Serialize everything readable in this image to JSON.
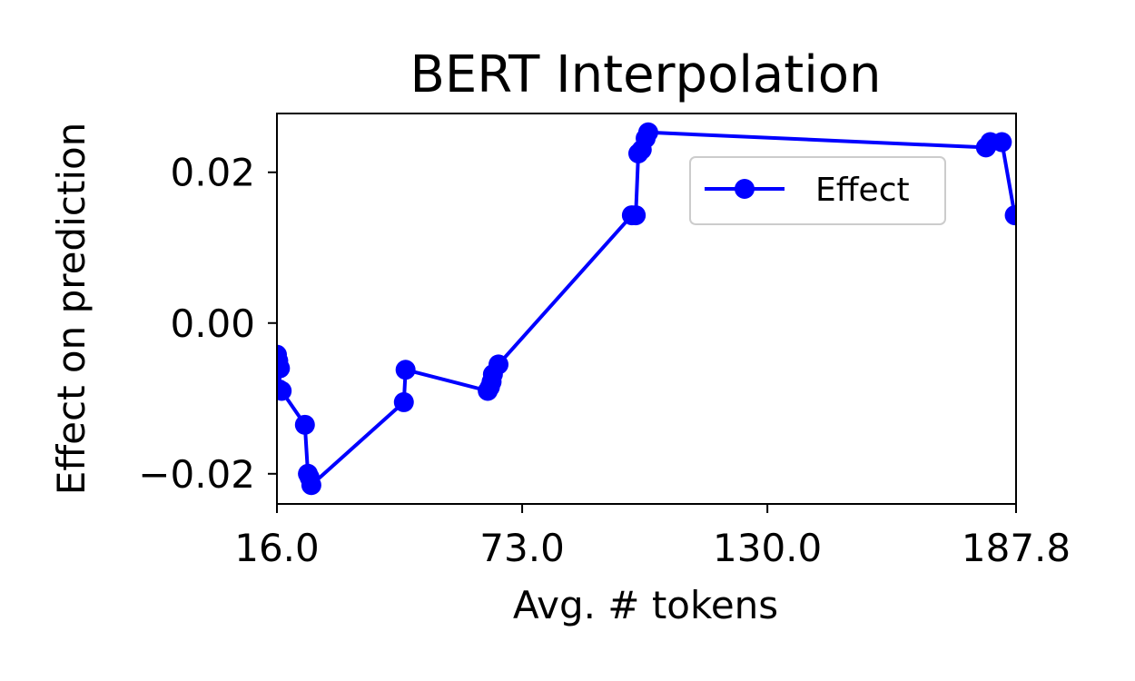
{
  "chart_data": {
    "type": "line",
    "title": "BERT Interpolation",
    "xlabel": "Avg. # tokens",
    "ylabel": "Effect on prediction",
    "xlim": [
      16.0,
      187.8
    ],
    "ylim": [
      -0.024,
      0.0278
    ],
    "xticks": [
      16.0,
      73.0,
      130.0,
      187.8
    ],
    "xtick_labels": [
      "16.0",
      "73.0",
      "130.0",
      "187.8"
    ],
    "yticks": [
      0.02,
      0.0,
      -0.02
    ],
    "ytick_labels": [
      "0.02",
      "0.00",
      "−0.02"
    ],
    "grid": false,
    "legend_position": "upper-right",
    "series": [
      {
        "name": "Effect",
        "color": "#0000ff",
        "marker": "circle",
        "x": [
          16.0,
          16.3,
          16.7,
          16.5,
          17.1,
          22.5,
          23.2,
          23.6,
          24.0,
          45.5,
          45.9,
          65.0,
          65.5,
          65.9,
          66.2,
          67.5,
          98.5,
          99.4,
          100.0,
          100.8,
          101.7,
          102.3,
          180.8,
          181.8,
          184.5,
          187.5
        ],
        "y": [
          -0.0042,
          -0.005,
          -0.006,
          -0.0088,
          -0.009,
          -0.0135,
          -0.02,
          -0.0205,
          -0.0215,
          -0.0105,
          -0.0062,
          -0.009,
          -0.0085,
          -0.0078,
          -0.0068,
          -0.0055,
          0.0143,
          0.0143,
          0.0225,
          0.023,
          0.0245,
          0.0253,
          0.0233,
          0.024,
          0.024,
          0.0143
        ]
      }
    ]
  }
}
